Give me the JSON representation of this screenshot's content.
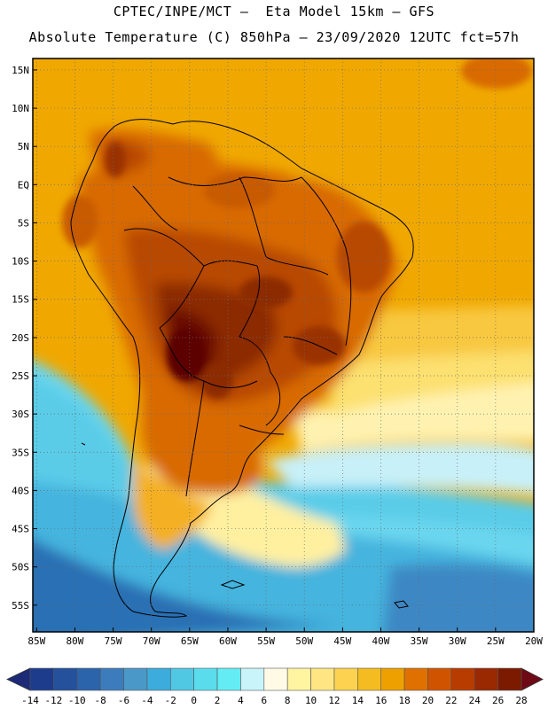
{
  "header": {
    "line1": "CPTEC/INPE/MCT –  Eta Model 15km – GFS",
    "line2": "Absolute Temperature (C) 850hPa – 23/09/2020 12UTC fct=57h"
  },
  "map": {
    "lat_labels": [
      "15N",
      "10N",
      "5N",
      "EQ",
      "5S",
      "10S",
      "15S",
      "20S",
      "25S",
      "30S",
      "35S",
      "40S",
      "45S",
      "50S",
      "55S"
    ],
    "lon_labels": [
      "85W",
      "80W",
      "75W",
      "70W",
      "65W",
      "60W",
      "55W",
      "50W",
      "45W",
      "40W",
      "35W",
      "30W",
      "25W",
      "20W"
    ],
    "lat_values": [
      15,
      10,
      5,
      0,
      -5,
      -10,
      -15,
      -20,
      -25,
      -30,
      -35,
      -40,
      -45,
      -50,
      -55
    ],
    "lon_values": [
      -85,
      -80,
      -75,
      -70,
      -65,
      -60,
      -55,
      -50,
      -45,
      -40,
      -35,
      -30,
      -25,
      -20
    ],
    "extent": {
      "lon_min": -85.5,
      "lon_max": -20.0,
      "lat_min": -58.5,
      "lat_max": 16.5
    }
  },
  "legend": {
    "labels": [
      "-14",
      "-12",
      "-10",
      "-8",
      "-6",
      "-4",
      "-2",
      "0",
      "2",
      "4",
      "6",
      "8",
      "10",
      "12",
      "14",
      "16",
      "18",
      "20",
      "22",
      "24",
      "26",
      "28"
    ],
    "colors": [
      "#1e3c8c",
      "#24509c",
      "#2c64ac",
      "#3c7cbc",
      "#4a98c8",
      "#3cacdc",
      "#50c8e4",
      "#5adcec",
      "#64ecf4",
      "#c8f4fa",
      "#fffae6",
      "#fff4a0",
      "#ffe682",
      "#fcd250",
      "#f4bc20",
      "#eea000",
      "#e07000",
      "#d05400",
      "#b83c00",
      "#9a2800",
      "#7c1a00"
    ],
    "under_color": "#1c2a78",
    "over_color": "#6e0a16"
  }
}
